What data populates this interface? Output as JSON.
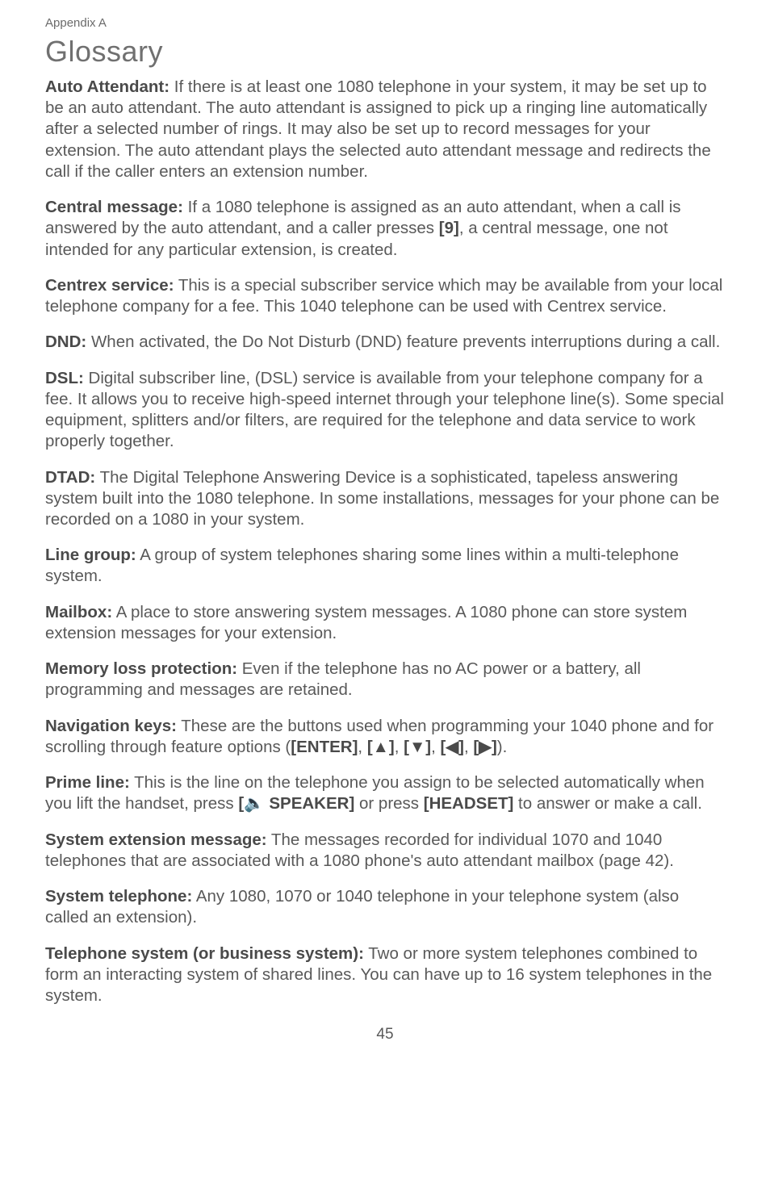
{
  "header": {
    "appendix": "Appendix A",
    "title": "Glossary"
  },
  "entries": [
    {
      "term": "Auto Attendant:",
      "body": " If there is at least one 1080 telephone in your system, it may be set up to be an auto attendant. The auto attendant is assigned to pick up a ringing line automatically after a selected number of rings. It may also be set up to record messages for your extension. The auto attendant plays the selected auto attendant message and redirects the call if the caller enters an extension number."
    },
    {
      "term": "Central message:",
      "body_pre": " If a 1080 telephone is assigned as an auto attendant, when a call is answered by the auto attendant, and a caller presses ",
      "key1": "[9]",
      "body_post": ", a central message, one not intended for any particular extension, is created."
    },
    {
      "term": "Centrex service:",
      "body": " This is a special subscriber service which may be available from your local telephone company for a fee. This 1040 telephone can be used with Centrex service."
    },
    {
      "term": "DND:",
      "body": " When activated, the Do Not Disturb (DND) feature prevents interruptions during a call."
    },
    {
      "term": "DSL:",
      "body": " Digital subscriber line, (DSL) service is available from your telephone company for a fee. It allows you to receive high-speed internet through your telephone line(s). Some special equipment, splitters and/or filters, are required for the telephone and data service to work properly together."
    },
    {
      "term": "DTAD:",
      "body": " The Digital Telephone Answering Device is a sophisticated, tapeless answering system built into the 1080 telephone. In some installations, messages for your phone can be recorded on a 1080 in your system."
    },
    {
      "term": "Line group:",
      "body": " A group of system telephones sharing some lines within a multi-telephone system."
    },
    {
      "term": "Mailbox:",
      "body": " A place to store answering system messages. A 1080 phone can store system extension messages for your extension."
    },
    {
      "term": "Memory loss protection:",
      "body": " Even if the telephone has no AC power or a battery, all programming and messages are retained."
    },
    {
      "term": "Navigation keys:",
      "body_pre": " These are the buttons used when programming your 1040 phone and for scrolling through feature options (",
      "key_enter": "[ENTER]",
      "sep1": ", ",
      "key_up": "[▲]",
      "sep2": ", ",
      "key_down": "[▼]",
      "sep3": ", ",
      "key_left": "[◀]",
      "sep4": ", ",
      "key_right": "[▶]",
      "body_post": ")."
    },
    {
      "term": "Prime line:",
      "body_pre": " This is the line on the telephone you assign to be selected automatically when you lift the handset, press ",
      "key_speaker": "[🔈 SPEAKER]",
      "mid": " or press ",
      "key_headset": "[HEADSET]",
      "body_post": " to answer or make a call."
    },
    {
      "term": "System extension message:",
      "body": "  The messages recorded for individual 1070 and 1040 telephones that are associated with a 1080 phone's auto attendant mailbox (page 42)."
    },
    {
      "term": "System telephone:",
      "body": " Any 1080, 1070 or 1040 telephone in your telephone system (also called an extension)."
    },
    {
      "term": "Telephone system (or business system):",
      "body": " Two or more system telephones combined to form an interacting system of shared lines. You can have up to 16 system telephones in the system."
    }
  ],
  "pagenum": "45"
}
